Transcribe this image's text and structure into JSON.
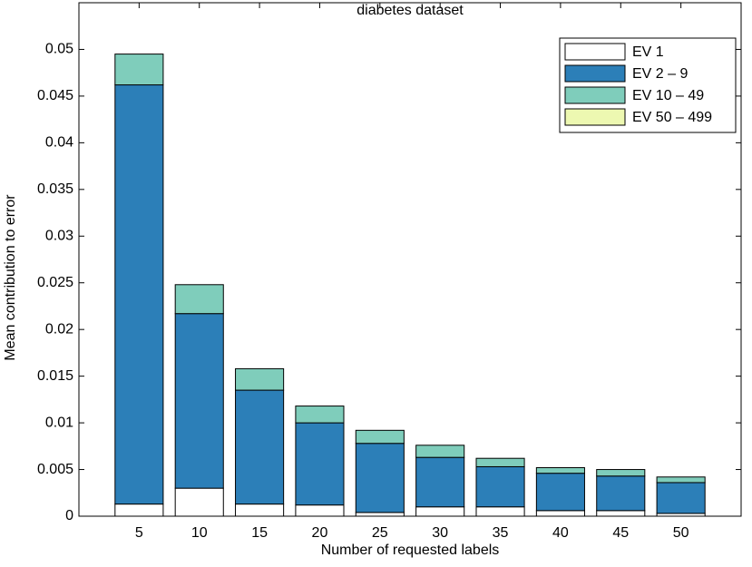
{
  "chart_data": {
    "type": "stacked_bar",
    "title": "diabetes dataset",
    "x_label": "Number of requested labels",
    "y_label": "Mean contribution to error",
    "x": [
      5,
      10,
      15,
      20,
      25,
      30,
      35,
      40,
      45,
      50
    ],
    "series": [
      {
        "name": "EV 1",
        "color": "#ffffff",
        "values": [
          0.0013,
          0.003,
          0.0013,
          0.0012,
          0.0004,
          0.001,
          0.001,
          0.0006,
          0.0006,
          0.0003
        ]
      },
      {
        "name": "EV 2 – 9",
        "color": "#2c7fb8",
        "values": [
          0.0449,
          0.0187,
          0.0122,
          0.0088,
          0.0074,
          0.0053,
          0.0043,
          0.004,
          0.0037,
          0.0033
        ]
      },
      {
        "name": "EV 10 – 49",
        "color": "#7fcdbb",
        "values": [
          0.0033,
          0.0031,
          0.0023,
          0.0018,
          0.0014,
          0.0013,
          0.0009,
          0.0006,
          0.0007,
          0.0006
        ]
      },
      {
        "name": "EV 50 – 499",
        "color": "#edf8b1",
        "values": [
          0,
          0,
          0,
          0,
          0,
          0,
          0,
          0,
          0,
          0
        ]
      }
    ],
    "xlim": [
      0,
      55
    ],
    "ylim": [
      0,
      0.055
    ],
    "yticks": [
      0,
      0.005,
      0.01,
      0.015,
      0.02,
      0.025,
      0.03,
      0.035,
      0.04,
      0.045,
      0.05
    ],
    "legend": "upper-right"
  }
}
